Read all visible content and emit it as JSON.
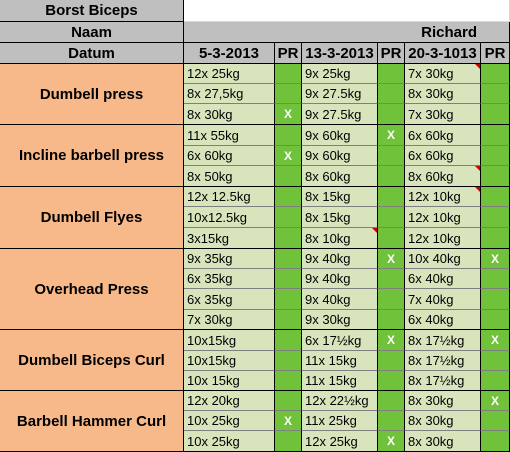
{
  "title": "Borst Biceps",
  "labels": {
    "naam": "Naam",
    "datum": "Datum"
  },
  "person": "Richard",
  "pr_label": "PR",
  "dates": [
    "5-3-2013",
    "13-3-2013",
    "20-3-1013"
  ],
  "colors": {
    "header": "#bfbfbf",
    "exercise": "#f8b98a",
    "value": "#d8e4bc",
    "pr": "#6fc23a",
    "flag": "#d00000"
  },
  "exercises": [
    {
      "name": "Dumbell press",
      "rows": [
        {
          "v": [
            "12x 25kg",
            "9x 25kg",
            "7x 30kg"
          ],
          "pr": [
            "",
            "",
            ""
          ],
          "flag": [
            false,
            false,
            true
          ]
        },
        {
          "v": [
            "8x 27,5kg",
            "9x 27.5kg",
            "8x 30kg"
          ],
          "pr": [
            "",
            "",
            ""
          ],
          "flag": [
            false,
            false,
            false
          ]
        },
        {
          "v": [
            "8x 30kg",
            "9x 27.5kg",
            "7x 30kg"
          ],
          "pr": [
            "X",
            "",
            ""
          ],
          "flag": [
            false,
            false,
            false
          ]
        }
      ]
    },
    {
      "name": "Incline barbell press",
      "rows": [
        {
          "v": [
            "11x 55kg",
            "9x 60kg",
            "6x 60kg"
          ],
          "pr": [
            "",
            "X",
            ""
          ],
          "flag": [
            false,
            false,
            false
          ]
        },
        {
          "v": [
            "6x 60kg",
            "9x 60kg",
            "6x 60kg"
          ],
          "pr": [
            "X",
            "",
            ""
          ],
          "flag": [
            false,
            false,
            false
          ]
        },
        {
          "v": [
            "8x 50kg",
            "8x 60kg",
            "8x 60kg"
          ],
          "pr": [
            "",
            "",
            ""
          ],
          "flag": [
            false,
            false,
            true
          ]
        }
      ]
    },
    {
      "name": "Dumbell Flyes",
      "rows": [
        {
          "v": [
            "12x 12.5kg",
            "8x 15kg",
            "12x 10kg"
          ],
          "pr": [
            "",
            "",
            ""
          ],
          "flag": [
            false,
            false,
            true
          ]
        },
        {
          "v": [
            "10x12.5kg",
            "8x 15kg",
            "12x 10kg"
          ],
          "pr": [
            "",
            "",
            ""
          ],
          "flag": [
            false,
            false,
            false
          ]
        },
        {
          "v": [
            "3x15kg",
            "8x 10kg",
            "12x 10kg"
          ],
          "pr": [
            "",
            "",
            ""
          ],
          "flag": [
            false,
            true,
            false
          ]
        }
      ]
    },
    {
      "name": "Overhead Press",
      "rows": [
        {
          "v": [
            "9x 35kg",
            "9x 40kg",
            "10x 40kg"
          ],
          "pr": [
            "",
            "X",
            "X"
          ],
          "flag": [
            false,
            false,
            false
          ]
        },
        {
          "v": [
            "6x 35kg",
            "9x 40kg",
            "6x 40kg"
          ],
          "pr": [
            "",
            "",
            ""
          ],
          "flag": [
            false,
            false,
            false
          ]
        },
        {
          "v": [
            "6x 35kg",
            "9x 40kg",
            "7x 40kg"
          ],
          "pr": [
            "",
            "",
            ""
          ],
          "flag": [
            false,
            false,
            false
          ]
        },
        {
          "v": [
            "7x 30kg",
            "9x 30kg",
            "6x  40kg"
          ],
          "pr": [
            "",
            "",
            ""
          ],
          "flag": [
            false,
            false,
            false
          ]
        }
      ]
    },
    {
      "name": "Dumbell Biceps Curl",
      "rows": [
        {
          "v": [
            "10x15kg",
            "6x 17½kg",
            "8x 17½kg"
          ],
          "pr": [
            "",
            "X",
            "X"
          ],
          "flag": [
            false,
            false,
            false
          ]
        },
        {
          "v": [
            "10x15kg",
            "11x 15kg",
            "8x 17½kg"
          ],
          "pr": [
            "",
            "",
            ""
          ],
          "flag": [
            false,
            false,
            false
          ]
        },
        {
          "v": [
            "10x 15kg",
            "11x 15kg",
            "8x 17½kg"
          ],
          "pr": [
            "",
            "",
            ""
          ],
          "flag": [
            false,
            false,
            false
          ]
        }
      ]
    },
    {
      "name": "Barbell Hammer Curl",
      "rows": [
        {
          "v": [
            "12x 20kg",
            "12x 22½kg",
            "8x 30kg"
          ],
          "pr": [
            "",
            "",
            "X"
          ],
          "flag": [
            false,
            false,
            false
          ]
        },
        {
          "v": [
            "10x  25kg",
            "11x 25kg",
            "8x 30kg"
          ],
          "pr": [
            "X",
            "",
            ""
          ],
          "flag": [
            false,
            false,
            false
          ]
        },
        {
          "v": [
            "10x 25kg",
            "12x 25kg",
            "8x 30kg"
          ],
          "pr": [
            "",
            "X",
            ""
          ],
          "flag": [
            false,
            false,
            false
          ]
        }
      ]
    }
  ]
}
